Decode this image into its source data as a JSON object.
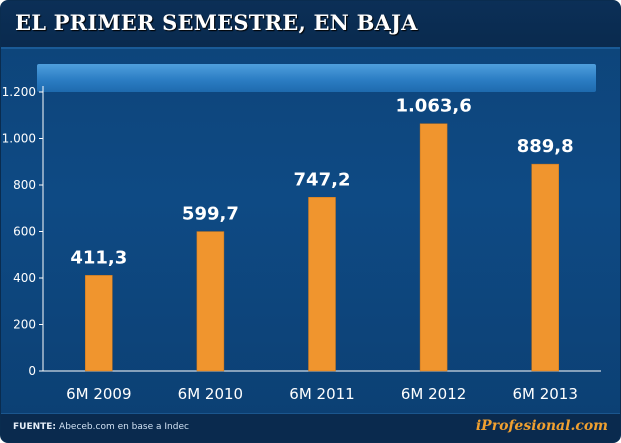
{
  "chart_data": {
    "type": "bar",
    "title": "EL PRIMER SEMESTRE, EN BAJA",
    "categories": [
      "6M 2009",
      "6M 2010",
      "6M 2011",
      "6M 2012",
      "6M 2013"
    ],
    "values": [
      411.3,
      599.7,
      747.2,
      1063.6,
      889.8
    ],
    "value_labels": [
      "411,3",
      "599,7",
      "747,2",
      "1.063,6",
      "889,8"
    ],
    "xlabel": "",
    "ylabel": "",
    "ylim": [
      0,
      1200
    ],
    "yticks": [
      0,
      200,
      400,
      600,
      800,
      1000,
      1200
    ],
    "ytick_labels": [
      "0",
      "200",
      "400",
      "600",
      "800",
      "1.000",
      "1.200"
    ],
    "grid": false,
    "bar_color": "#f0952e"
  },
  "footer": {
    "source_label": "FUENTE:",
    "source_text": "Abeceb.com en base a Indec",
    "brand": "iProfesional.com"
  },
  "colors": {
    "background": "#0e4a84",
    "title_bar": "#0a2a4e",
    "band": "#2c7ec4",
    "brand": "#f0a030"
  }
}
